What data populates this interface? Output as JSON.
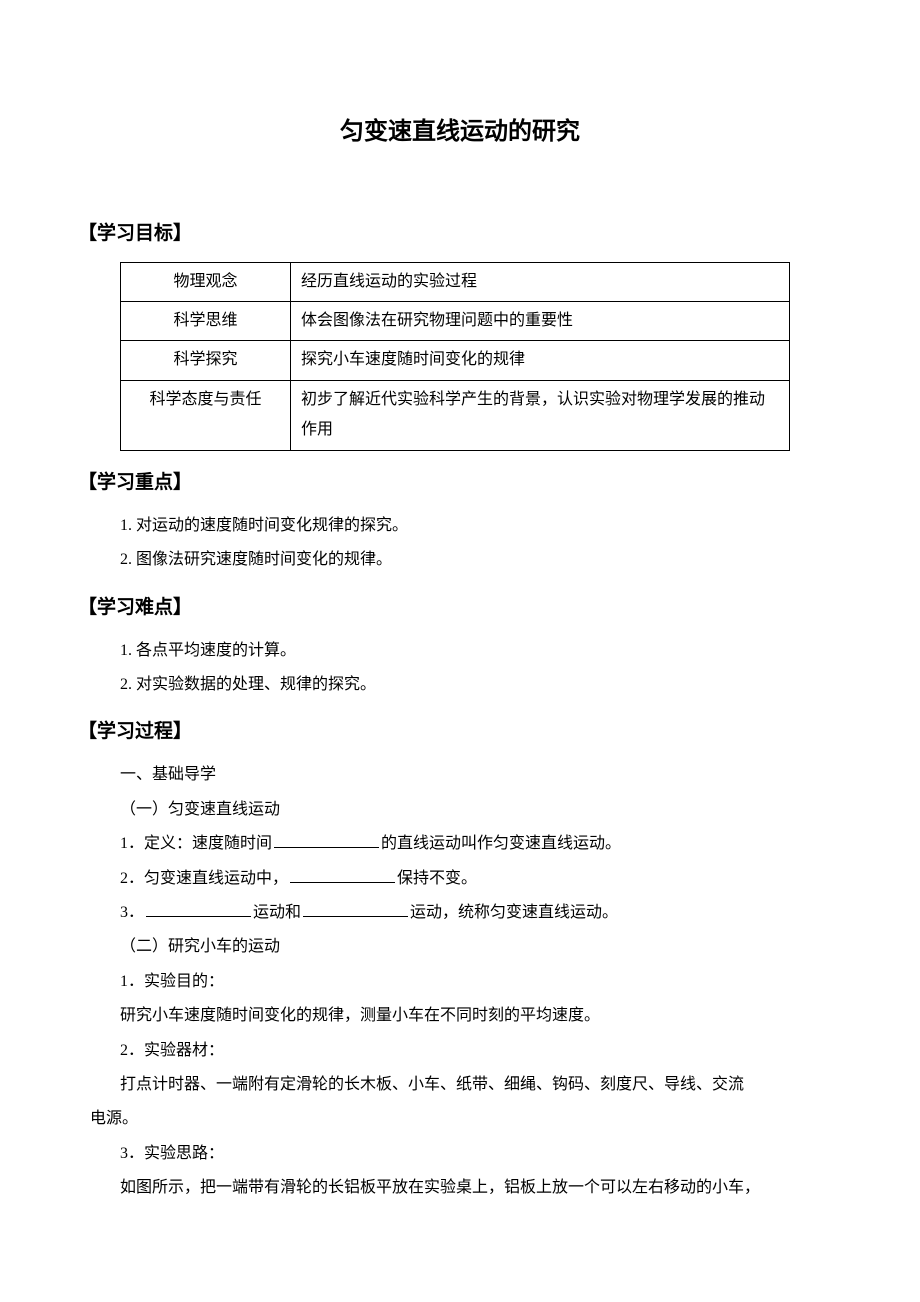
{
  "title": "匀变速直线运动的研究",
  "sections": {
    "objectives": {
      "header": "【学习目标】",
      "rows": [
        {
          "label": "物理观念",
          "content": "经历直线运动的实验过程"
        },
        {
          "label": "科学思维",
          "content": "体会图像法在研究物理问题中的重要性"
        },
        {
          "label": "科学探究",
          "content": "探究小车速度随时间变化的规律"
        },
        {
          "label": "科学态度与责任",
          "content": "初步了解近代实验科学产生的背景，认识实验对物理学发展的推动作用"
        }
      ]
    },
    "keypoints": {
      "header": "【学习重点】",
      "items": [
        "1. 对运动的速度随时间变化规律的探究。",
        "2. 图像法研究速度随时间变化的规律。"
      ]
    },
    "difficulties": {
      "header": "【学习难点】",
      "items": [
        "1. 各点平均速度的计算。",
        "2. 对实验数据的处理、规律的探究。"
      ]
    },
    "process": {
      "header": "【学习过程】",
      "intro": "一、基础导学",
      "sub1": "（一）匀变速直线运动",
      "line1a": "1．定义：速度随时间",
      "line1b": "的直线运动叫作匀变速直线运动。",
      "line2a": "2．匀变速直线运动中，",
      "line2b": "保持不变。",
      "line3a": "3．",
      "line3b": "运动和",
      "line3c": "运动，统称匀变速直线运动。",
      "sub2": "（二）研究小车的运动",
      "exp1_label": "1．实验目的：",
      "exp1_text": "研究小车速度随时间变化的规律，测量小车在不同时刻的平均速度。",
      "exp2_label": "2．实验器材：",
      "exp2_text_a": "打点计时器、一端附有定滑轮的长木板、小车、纸带、细绳、钩码、刻度尺、导线、交流",
      "exp2_text_b": "电源。",
      "exp3_label": "3．实验思路：",
      "exp3_text": "如图所示，把一端带有滑轮的长铝板平放在实验桌上，铝板上放一个可以左右移动的小车，"
    }
  }
}
